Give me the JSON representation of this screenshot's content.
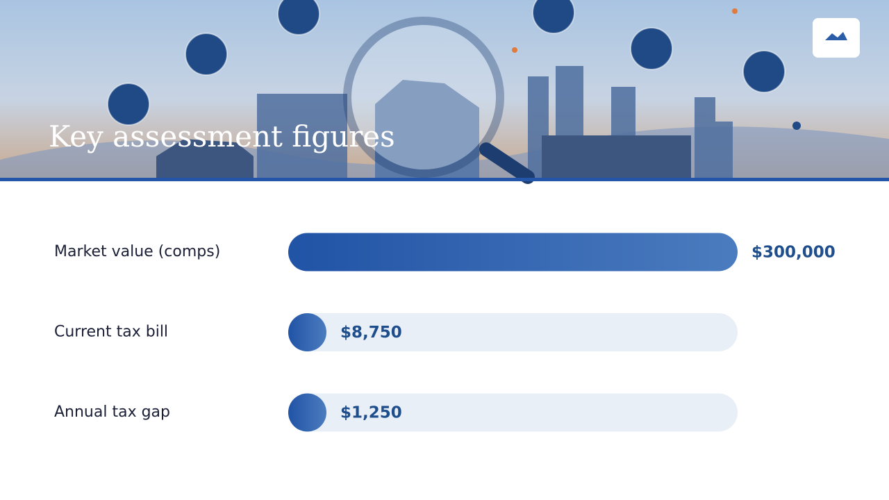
{
  "chart_data": {
    "type": "bar",
    "title": "Key assessment figures",
    "categories": [
      "Market value (comps)",
      "Current tax bill",
      "Annual tax gap"
    ],
    "values": [
      300000,
      8750,
      1250
    ],
    "value_labels": [
      "$300,000",
      "$8,750",
      "$1,250"
    ],
    "xlim": [
      0,
      300000
    ],
    "color": "#2a5ca8"
  }
}
